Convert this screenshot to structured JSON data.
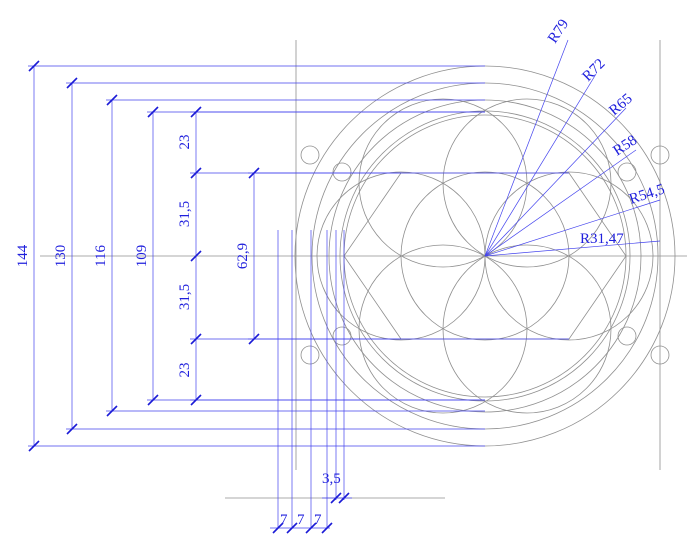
{
  "drawing": {
    "stroke_color": "#8f8f8f",
    "dimension_color": "#2020dd",
    "radius_labels": [
      "R79",
      "R72",
      "R65",
      "R58",
      "R54,5",
      "R31,47"
    ],
    "vertical_dimensions": {
      "d144": "144",
      "d130": "130",
      "d116": "116",
      "d109": "109",
      "d23_top": "23",
      "d31_5_top": "31,5",
      "d31_5_bottom": "31,5",
      "d23_bottom": "23",
      "d62_9": "62,9"
    },
    "horizontal_dimensions": {
      "d3_5": "3,5",
      "d7_a": "7",
      "d7_b": "7",
      "d7_c": "7"
    }
  }
}
